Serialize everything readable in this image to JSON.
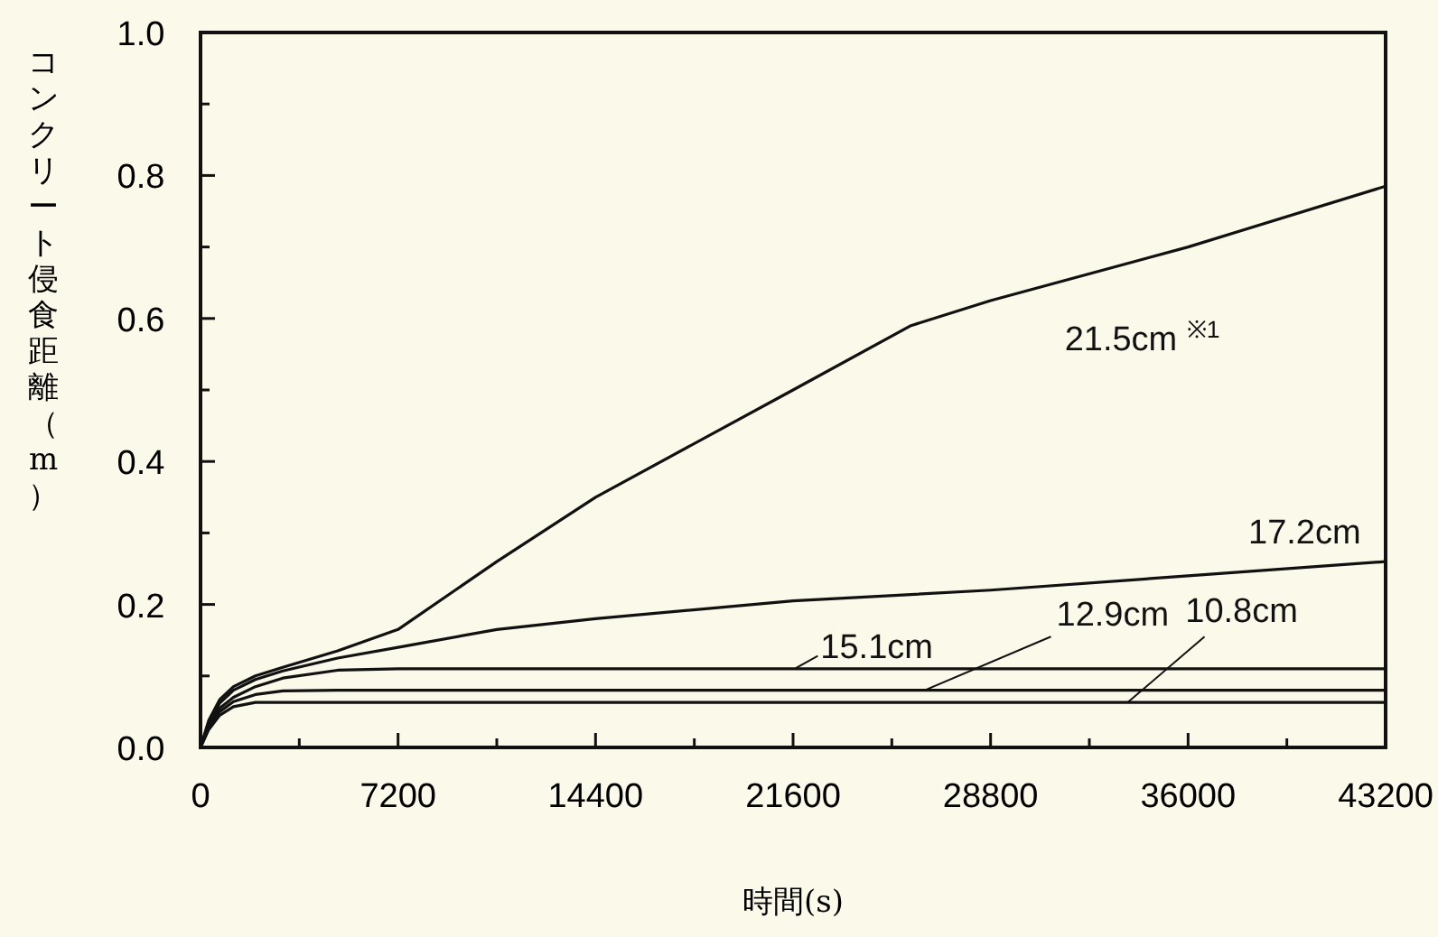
{
  "chart_data": {
    "type": "line",
    "xlabel": "時間(s)",
    "ylabel": "コンクリート侵食距離（m）",
    "xlim": [
      0,
      43200
    ],
    "ylim": [
      0,
      1.0
    ],
    "xticks": [
      0,
      {
        "value": 3600,
        "label": null
      },
      7200,
      {
        "value": 10800,
        "label": null
      },
      14400,
      {
        "value": 18000,
        "label": null
      },
      21600,
      {
        "value": 25200,
        "label": null
      },
      28800,
      {
        "value": 32400,
        "label": null
      },
      36000,
      {
        "value": 39600,
        "label": null
      },
      43200
    ],
    "yticks": [
      {
        "value": 0,
        "label": "0.0"
      },
      {
        "value": 0.1,
        "label": null
      },
      {
        "value": 0.2,
        "label": "0.2"
      },
      {
        "value": 0.3,
        "label": null
      },
      {
        "value": 0.4,
        "label": "0.4"
      },
      {
        "value": 0.5,
        "label": null
      },
      {
        "value": 0.6,
        "label": "0.6"
      },
      {
        "value": 0.7,
        "label": null
      },
      {
        "value": 0.8,
        "label": "0.8"
      },
      {
        "value": 0.9,
        "label": null
      },
      {
        "value": 1.0,
        "label": "1.0"
      }
    ],
    "grid": false,
    "marker": "none",
    "line_style": "solid",
    "series": [
      {
        "name": "21.5cm $^{※1}$",
        "color": "#111111",
        "x": [
          0,
          300,
          700,
          1200,
          2000,
          3000,
          5000,
          7200,
          10800,
          14400,
          21600,
          25900,
          28800,
          36000,
          43200
        ],
        "values": [
          0,
          0.038,
          0.067,
          0.085,
          0.1,
          0.112,
          0.135,
          0.165,
          0.26,
          0.35,
          0.5,
          0.59,
          0.625,
          0.7,
          0.785
        ]
      },
      {
        "name": "17.2cm",
        "color": "#111111",
        "x": [
          0,
          300,
          700,
          1200,
          2000,
          3000,
          5000,
          7200,
          10800,
          14400,
          21600,
          28800,
          36000,
          43200
        ],
        "values": [
          0,
          0.035,
          0.062,
          0.08,
          0.095,
          0.107,
          0.125,
          0.14,
          0.165,
          0.18,
          0.205,
          0.22,
          0.24,
          0.26
        ]
      },
      {
        "name": "15.1cm",
        "color": "#111111",
        "x": [
          0,
          300,
          700,
          1200,
          2000,
          3000,
          5000,
          7200,
          43200
        ],
        "values": [
          0,
          0.03,
          0.055,
          0.07,
          0.085,
          0.097,
          0.108,
          0.11,
          0.11
        ]
      },
      {
        "name": "12.9cm",
        "color": "#111111",
        "x": [
          0,
          300,
          700,
          1200,
          2000,
          3000,
          5000,
          43200
        ],
        "values": [
          0,
          0.028,
          0.05,
          0.064,
          0.074,
          0.079,
          0.08,
          0.08
        ]
      },
      {
        "name": "10.8cm",
        "color": "#111111",
        "x": [
          0,
          300,
          700,
          1200,
          2000,
          3000,
          43200
        ],
        "values": [
          0,
          0.025,
          0.045,
          0.057,
          0.063,
          0.063,
          0.063
        ]
      }
    ]
  }
}
